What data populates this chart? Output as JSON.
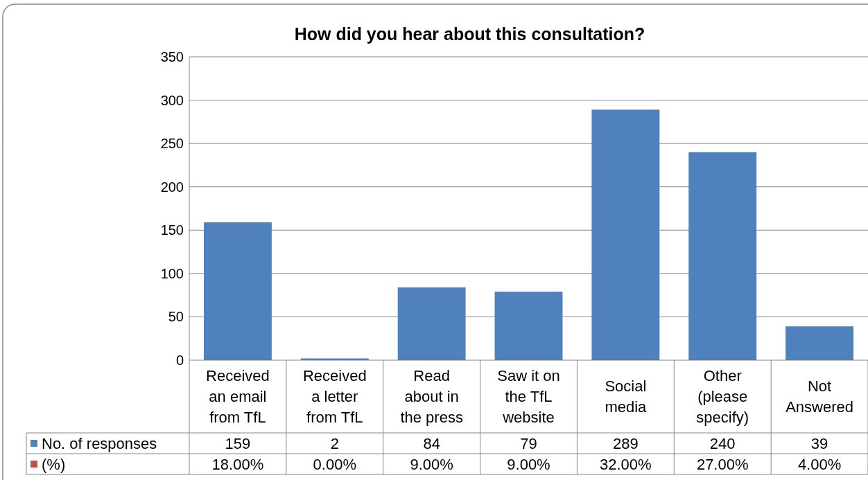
{
  "chart_data": {
    "type": "bar",
    "title": "How did you hear about this consultation?",
    "categories": [
      "Received an email from TfL",
      "Received a letter from TfL",
      "Read about in the press",
      "Saw it on the TfL website",
      "Social media",
      "Other (please specify)",
      "Not Answered"
    ],
    "series": [
      {
        "name": "No. of responses",
        "color": "#4f81bd",
        "values": [
          159,
          2,
          84,
          79,
          289,
          240,
          39
        ],
        "value_labels": [
          "159",
          "2",
          "84",
          "79",
          "289",
          "240",
          "39"
        ]
      },
      {
        "name": "(%)",
        "color": "#c0504d",
        "values": [
          0.18,
          0,
          0.09,
          0.09,
          0.32,
          0.27,
          0.04
        ],
        "value_labels": [
          "18.00%",
          "0.00%",
          "9.00%",
          "9.00%",
          "32.00%",
          "27.00%",
          "4.00%"
        ]
      }
    ],
    "ylim": [
      0,
      350
    ],
    "yticks": [
      0,
      50,
      100,
      150,
      200,
      250,
      300,
      350
    ],
    "grid": "y",
    "legend": "bottom"
  }
}
